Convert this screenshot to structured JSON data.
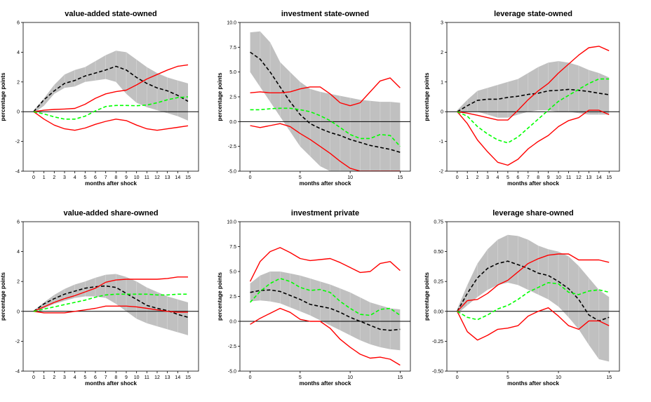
{
  "chart_data": [
    {
      "type": "line",
      "title": "value-added state-owned",
      "xlabel": "months after shock",
      "ylabel": "percentage points",
      "ylim": [
        -4,
        6
      ],
      "yticks": [
        -4,
        -2,
        0,
        2,
        4,
        6
      ],
      "ytick_labels": [
        "-4",
        "-2",
        "0",
        "2",
        "4",
        "6"
      ],
      "xticks": [
        0,
        1,
        2,
        3,
        4,
        5,
        6,
        7,
        8,
        9,
        10,
        11,
        12,
        13,
        14,
        15
      ],
      "xtick_labels": [
        "0",
        "1",
        "2",
        "3",
        "4",
        "5",
        "6",
        "7",
        "8",
        "9",
        "10",
        "11",
        "12",
        "13",
        "14",
        "15"
      ],
      "x": [
        0,
        1,
        2,
        3,
        4,
        5,
        6,
        7,
        8,
        9,
        10,
        11,
        12,
        13,
        14,
        15
      ],
      "band_upper": [
        0.1,
        0.9,
        1.8,
        2.5,
        2.8,
        3.0,
        3.4,
        3.8,
        4.1,
        4.0,
        3.5,
        3.0,
        2.6,
        2.3,
        2.1,
        1.9
      ],
      "band_lower": [
        -0.1,
        0.4,
        1.2,
        1.6,
        1.7,
        2.0,
        2.1,
        2.2,
        2.0,
        1.2,
        0.6,
        0.3,
        0.1,
        -0.1,
        -0.3,
        -0.6
      ],
      "series": [
        {
          "style": "median",
          "values": [
            0,
            0.8,
            1.4,
            1.9,
            2.1,
            2.4,
            2.6,
            2.8,
            3.05,
            2.8,
            2.3,
            1.9,
            1.6,
            1.4,
            1.1,
            0.7
          ]
        },
        {
          "style": "upper",
          "values": [
            0,
            0.1,
            0.15,
            0.18,
            0.22,
            0.5,
            0.9,
            1.2,
            1.35,
            1.45,
            1.8,
            2.2,
            2.5,
            2.8,
            3.05,
            3.15
          ]
        },
        {
          "style": "lower",
          "values": [
            0,
            -0.5,
            -0.9,
            -1.15,
            -1.25,
            -1.1,
            -0.85,
            -0.65,
            -0.5,
            -0.6,
            -0.9,
            -1.15,
            -1.25,
            -1.15,
            -1.05,
            -0.95
          ]
        },
        {
          "style": "alternative",
          "values": [
            0,
            -0.15,
            -0.35,
            -0.5,
            -0.5,
            -0.3,
            0.05,
            0.35,
            0.42,
            0.42,
            0.4,
            0.45,
            0.6,
            0.8,
            0.95,
            1.0
          ]
        }
      ]
    },
    {
      "type": "line",
      "title": "investment state-owned",
      "xlabel": "months after shock",
      "ylabel": "percentage points",
      "ylim": [
        -5,
        10
      ],
      "yticks": [
        -5,
        -2.5,
        0,
        2.5,
        5,
        7.5,
        10
      ],
      "ytick_labels": [
        "-5.0",
        "-2.5",
        "0.0",
        "2.5",
        "5.0",
        "7.5",
        "10.0"
      ],
      "xticks": [
        0,
        5,
        10,
        15
      ],
      "xtick_labels": [
        "0",
        "5",
        "10",
        "15"
      ],
      "x": [
        0,
        1,
        2,
        3,
        4,
        5,
        6,
        7,
        8,
        9,
        10,
        11,
        12,
        13,
        14,
        15
      ],
      "band_upper": [
        9.0,
        9.1,
        8.0,
        6.0,
        5.0,
        4.0,
        3.3,
        3.0,
        2.8,
        2.6,
        2.4,
        2.2,
        2.1,
        2.0,
        2.0,
        1.9
      ],
      "band_lower": [
        5.0,
        3.5,
        2.0,
        0.5,
        -1.0,
        -2.5,
        -3.5,
        -4.5,
        -5.0,
        -5.0,
        -5.0,
        -5.0,
        -5.0,
        -5.0,
        -5.0,
        -5.0
      ],
      "series": [
        {
          "style": "median",
          "values": [
            7.0,
            6.3,
            5.0,
            3.5,
            2.0,
            0.7,
            -0.2,
            -0.7,
            -1.1,
            -1.4,
            -1.8,
            -2.1,
            -2.4,
            -2.6,
            -2.8,
            -3.1
          ]
        },
        {
          "style": "upper",
          "values": [
            2.9,
            3.0,
            2.9,
            2.9,
            3.0,
            3.3,
            3.5,
            3.5,
            2.8,
            1.9,
            1.6,
            1.9,
            3.0,
            4.1,
            4.4,
            3.4
          ]
        },
        {
          "style": "lower",
          "values": [
            -0.4,
            -0.6,
            -0.4,
            -0.2,
            -0.5,
            -1.2,
            -1.8,
            -2.5,
            -3.2,
            -4.0,
            -4.7,
            -5.0,
            -5.0,
            -5.0,
            -5.0,
            -5.0
          ]
        },
        {
          "style": "alternative",
          "values": [
            1.2,
            1.2,
            1.3,
            1.35,
            1.35,
            1.2,
            1.0,
            0.6,
            0.1,
            -0.6,
            -1.3,
            -1.7,
            -1.7,
            -1.3,
            -1.4,
            -2.5
          ]
        }
      ]
    },
    {
      "type": "line",
      "title": "leverage state-owned",
      "xlabel": "months after shock",
      "ylabel": "percentage points",
      "ylim": [
        -2,
        3
      ],
      "yticks": [
        -2,
        -1,
        0,
        1,
        2,
        3
      ],
      "ytick_labels": [
        "-2",
        "-1",
        "0",
        "1",
        "2",
        "3"
      ],
      "xticks": [
        0,
        1,
        2,
        3,
        4,
        5,
        6,
        7,
        8,
        9,
        10,
        11,
        12,
        13,
        14,
        15
      ],
      "xtick_labels": [
        "0",
        "1",
        "2",
        "3",
        "4",
        "5",
        "6",
        "7",
        "8",
        "9",
        "10",
        "11",
        "12",
        "13",
        "14",
        "15"
      ],
      "x": [
        0,
        1,
        2,
        3,
        4,
        5,
        6,
        7,
        8,
        9,
        10,
        11,
        12,
        13,
        14,
        15
      ],
      "band_upper": [
        0.05,
        0.4,
        0.7,
        0.8,
        0.9,
        1.0,
        1.1,
        1.3,
        1.5,
        1.65,
        1.7,
        1.65,
        1.55,
        1.4,
        1.3,
        1.15
      ],
      "band_lower": [
        -0.05,
        0.0,
        0.0,
        -0.1,
        -0.2,
        -0.2,
        -0.1,
        0.0,
        0.05,
        0.05,
        0.0,
        0.0,
        -0.05,
        -0.1,
        -0.1,
        -0.1
      ],
      "series": [
        {
          "style": "median",
          "values": [
            0,
            0.2,
            0.38,
            0.42,
            0.42,
            0.48,
            0.52,
            0.58,
            0.62,
            0.7,
            0.72,
            0.75,
            0.72,
            0.68,
            0.62,
            0.57
          ]
        },
        {
          "style": "upper",
          "values": [
            0,
            -0.05,
            -0.12,
            -0.2,
            -0.28,
            -0.28,
            0.05,
            0.4,
            0.7,
            0.95,
            1.3,
            1.6,
            1.9,
            2.15,
            2.2,
            2.05
          ]
        },
        {
          "style": "lower",
          "values": [
            0,
            -0.4,
            -0.95,
            -1.35,
            -1.7,
            -1.8,
            -1.6,
            -1.25,
            -1.0,
            -0.8,
            -0.5,
            -0.3,
            -0.2,
            0.05,
            0.05,
            -0.1
          ]
        },
        {
          "style": "alternative",
          "values": [
            0,
            -0.15,
            -0.5,
            -0.75,
            -0.95,
            -1.05,
            -0.85,
            -0.55,
            -0.25,
            0.05,
            0.35,
            0.55,
            0.75,
            0.95,
            1.1,
            1.1
          ]
        }
      ]
    },
    {
      "type": "line",
      "title": "value-added share-owned",
      "xlabel": "months after shock",
      "ylabel": "percentage points",
      "ylim": [
        -4,
        6
      ],
      "yticks": [
        -4,
        -2,
        0,
        2,
        4,
        6
      ],
      "ytick_labels": [
        "-4",
        "-2",
        "0",
        "2",
        "4",
        "6"
      ],
      "xticks": [
        0,
        1,
        2,
        3,
        4,
        5,
        6,
        7,
        8,
        9,
        10,
        11,
        12,
        13,
        14,
        15
      ],
      "xtick_labels": [
        "0",
        "1",
        "2",
        "3",
        "4",
        "5",
        "6",
        "7",
        "8",
        "9",
        "10",
        "11",
        "12",
        "13",
        "14",
        "15"
      ],
      "x": [
        0,
        1,
        2,
        3,
        4,
        5,
        6,
        7,
        8,
        9,
        10,
        11,
        12,
        13,
        14,
        15
      ],
      "band_upper": [
        0.05,
        0.6,
        1.1,
        1.5,
        1.8,
        2.0,
        2.25,
        2.45,
        2.5,
        2.3,
        2.0,
        1.6,
        1.3,
        1.0,
        0.8,
        0.6
      ],
      "band_lower": [
        -0.05,
        0.2,
        0.5,
        0.7,
        0.9,
        1.0,
        1.0,
        0.9,
        0.5,
        0.0,
        -0.5,
        -0.8,
        -1.0,
        -1.2,
        -1.4,
        -1.6
      ],
      "series": [
        {
          "style": "median",
          "values": [
            0,
            0.5,
            0.85,
            1.15,
            1.35,
            1.55,
            1.65,
            1.7,
            1.6,
            1.2,
            0.8,
            0.4,
            0.2,
            0.05,
            -0.2,
            -0.4
          ]
        },
        {
          "style": "upper",
          "values": [
            0,
            0.3,
            0.6,
            0.85,
            1.05,
            1.3,
            1.55,
            1.95,
            2.1,
            2.15,
            2.15,
            2.15,
            2.15,
            2.2,
            2.3,
            2.3
          ]
        },
        {
          "style": "lower",
          "values": [
            0,
            -0.1,
            -0.1,
            -0.1,
            0.0,
            0.1,
            0.2,
            0.35,
            0.35,
            0.35,
            0.3,
            0.2,
            0.1,
            0.0,
            -0.05,
            -0.05
          ]
        },
        {
          "style": "alternative",
          "values": [
            0,
            0.15,
            0.3,
            0.45,
            0.6,
            0.75,
            0.95,
            1.1,
            1.15,
            1.15,
            1.15,
            1.15,
            1.1,
            1.1,
            1.15,
            1.15
          ]
        }
      ]
    },
    {
      "type": "line",
      "title": "investment private",
      "xlabel": "months after shock",
      "ylabel": "percentage points",
      "ylim": [
        -5,
        10
      ],
      "yticks": [
        -5,
        -2.5,
        0,
        2.5,
        5,
        7.5,
        10
      ],
      "ytick_labels": [
        "-5.0",
        "-2.5",
        "0.0",
        "2.5",
        "5.0",
        "7.5",
        "10.0"
      ],
      "xticks": [
        0,
        5,
        10,
        15
      ],
      "xtick_labels": [
        "0",
        "5",
        "10",
        "15"
      ],
      "x": [
        0,
        1,
        2,
        3,
        4,
        5,
        6,
        7,
        8,
        9,
        10,
        11,
        12,
        13,
        14,
        15
      ],
      "band_upper": [
        3.8,
        4.6,
        5.0,
        5.0,
        4.8,
        4.6,
        4.3,
        4.0,
        3.7,
        3.3,
        2.9,
        2.4,
        1.9,
        1.6,
        1.3,
        1.2
      ],
      "band_lower": [
        2.0,
        2.1,
        2.0,
        1.8,
        1.4,
        1.0,
        0.6,
        0.1,
        -0.4,
        -0.9,
        -1.4,
        -1.9,
        -2.3,
        -2.6,
        -2.8,
        -2.9
      ],
      "series": [
        {
          "style": "median",
          "values": [
            2.9,
            3.1,
            3.15,
            3.0,
            2.6,
            2.2,
            1.7,
            1.5,
            1.3,
            0.9,
            0.4,
            0.0,
            -0.4,
            -0.8,
            -0.9,
            -0.8
          ]
        },
        {
          "style": "upper",
          "values": [
            4.0,
            6.0,
            7.0,
            7.4,
            6.9,
            6.3,
            6.1,
            6.2,
            6.3,
            5.9,
            5.4,
            4.9,
            5.0,
            5.8,
            6.0,
            5.1
          ]
        },
        {
          "style": "lower",
          "values": [
            -0.3,
            0.3,
            0.8,
            1.3,
            0.9,
            0.2,
            0.0,
            0.0,
            -0.7,
            -1.8,
            -2.6,
            -3.3,
            -3.7,
            -3.6,
            -3.8,
            -4.4
          ]
        },
        {
          "style": "alternative",
          "values": [
            1.9,
            3.0,
            3.8,
            4.3,
            4.0,
            3.4,
            3.1,
            3.2,
            2.9,
            2.0,
            1.3,
            0.7,
            0.6,
            1.2,
            1.3,
            0.6
          ]
        }
      ]
    },
    {
      "type": "line",
      "title": "leverage share-owned",
      "xlabel": "months after shock",
      "ylabel": "percentage points",
      "ylim": [
        -0.5,
        0.75
      ],
      "yticks": [
        -0.5,
        -0.25,
        0,
        0.25,
        0.5,
        0.75
      ],
      "ytick_labels": [
        "-0.50",
        "-0.25",
        "0.00",
        "0.25",
        "0.50",
        "0.75"
      ],
      "xticks": [
        0,
        5,
        10,
        15
      ],
      "xtick_labels": [
        "0",
        "5",
        "10",
        "15"
      ],
      "x": [
        0,
        1,
        2,
        3,
        4,
        5,
        6,
        7,
        8,
        9,
        10,
        11,
        12,
        13,
        14,
        15
      ],
      "band_upper": [
        0.02,
        0.22,
        0.4,
        0.52,
        0.6,
        0.64,
        0.63,
        0.6,
        0.55,
        0.52,
        0.5,
        0.46,
        0.38,
        0.28,
        0.18,
        0.12
      ],
      "band_lower": [
        -0.02,
        0.05,
        0.12,
        0.18,
        0.22,
        0.24,
        0.22,
        0.18,
        0.14,
        0.1,
        0.04,
        -0.05,
        -0.15,
        -0.28,
        -0.4,
        -0.42
      ],
      "series": [
        {
          "style": "median",
          "values": [
            0,
            0.15,
            0.28,
            0.36,
            0.4,
            0.42,
            0.39,
            0.36,
            0.32,
            0.3,
            0.25,
            0.19,
            0.1,
            -0.03,
            -0.08,
            -0.05
          ]
        },
        {
          "style": "upper",
          "values": [
            0,
            0.09,
            0.1,
            0.15,
            0.22,
            0.26,
            0.33,
            0.4,
            0.44,
            0.47,
            0.48,
            0.48,
            0.43,
            0.43,
            0.43,
            0.41
          ]
        },
        {
          "style": "lower",
          "values": [
            0,
            -0.17,
            -0.24,
            -0.2,
            -0.15,
            -0.14,
            -0.12,
            -0.04,
            0.0,
            0.03,
            -0.04,
            -0.12,
            -0.15,
            -0.08,
            -0.08,
            -0.12
          ]
        },
        {
          "style": "alternative",
          "values": [
            0,
            -0.05,
            -0.07,
            -0.03,
            0.02,
            0.05,
            0.1,
            0.16,
            0.2,
            0.24,
            0.23,
            0.16,
            0.14,
            0.17,
            0.18,
            0.16
          ]
        }
      ]
    }
  ],
  "colors": {
    "band": "#c0c0c0",
    "band_lines": "#d8d8d8",
    "median": "#000000",
    "bounds": "#ff0000",
    "alternative": "#00ff00",
    "axis": "#000000"
  }
}
